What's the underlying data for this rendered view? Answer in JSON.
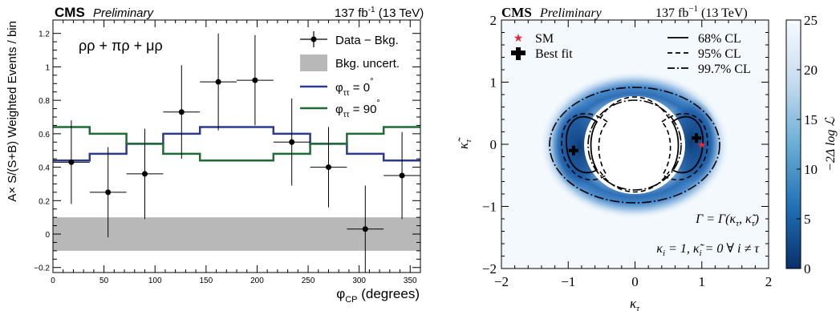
{
  "chart_data": [
    {
      "type": "line",
      "header": {
        "cms": "CMS",
        "preliminary": "Preliminary",
        "lumi": "137 fb",
        "lumi_exp": "-1",
        "energy": " (13 TeV)"
      },
      "channel_label": "ρρ + πρ + μρ",
      "xlabel": "φ",
      "xlabel_sub": "CP",
      "xlabel_unit": " (degrees)",
      "ylabel": "A× S/(S+B) Weighted Events / bin",
      "xlim": [
        0,
        360
      ],
      "ylim": [
        -0.23,
        1.28
      ],
      "xticks": [
        0,
        50,
        100,
        150,
        200,
        250,
        300,
        350
      ],
      "yticks": [
        -0.2,
        0,
        0.2,
        0.4,
        0.6,
        0.8,
        1,
        1.2
      ],
      "ytick_labels": [
        "−0.2",
        "0",
        "0.2",
        "0.4",
        "0.6",
        "0.8",
        "1",
        "1.2"
      ],
      "bin_edges": [
        0,
        36,
        72,
        108,
        144,
        180,
        216,
        252,
        288,
        324,
        360
      ],
      "legend": {
        "data": "Data − Bkg.",
        "uncert": "Bkg. uncert.",
        "phi0_main": "φ",
        "phi0_sub": "ττ",
        "phi0_val": " = 0",
        "phi90_main": "φ",
        "phi90_sub": "ττ",
        "phi90_val": " = 90",
        "deg": "°"
      },
      "data_points": [
        {
          "x": 18,
          "y": 0.43,
          "err": 0.25
        },
        {
          "x": 54,
          "y": 0.25,
          "err": 0.27
        },
        {
          "x": 90,
          "y": 0.36,
          "err": 0.27
        },
        {
          "x": 126,
          "y": 0.73,
          "err": 0.28
        },
        {
          "x": 162,
          "y": 0.91,
          "err": 0.29
        },
        {
          "x": 198,
          "y": 0.92,
          "err": 0.27
        },
        {
          "x": 234,
          "y": 0.55,
          "err": 0.26
        },
        {
          "x": 270,
          "y": 0.4,
          "err": 0.24
        },
        {
          "x": 306,
          "y": 0.03,
          "err": 0.26
        },
        {
          "x": 342,
          "y": 0.35,
          "err": 0.26
        }
      ],
      "bkg_uncert_band": [
        -0.1,
        0.1
      ],
      "series": [
        {
          "name": "φττ = 0°",
          "color": "#2b3a8f",
          "values": [
            0.44,
            0.48,
            0.54,
            0.6,
            0.64,
            0.64,
            0.6,
            0.54,
            0.48,
            0.44
          ]
        },
        {
          "name": "φττ = 90°",
          "color": "#1f6b36",
          "values": [
            0.64,
            0.6,
            0.54,
            0.48,
            0.44,
            0.44,
            0.48,
            0.54,
            0.6,
            0.64
          ]
        }
      ],
      "band_color": "#b8b8b8"
    },
    {
      "type": "heatmap",
      "header": {
        "cms": "CMS",
        "preliminary": "Preliminary",
        "lumi": "137 fb",
        "lumi_exp": "−1",
        "energy": " (13 TeV)"
      },
      "xlabel": "κ",
      "xlabel_sub": "τ",
      "ylabel": "κ̃",
      "ylabel_sub": "τ",
      "xlim": [
        -2,
        2
      ],
      "ylim": [
        -2,
        2
      ],
      "xticks": [
        -2,
        -1,
        0,
        1,
        2
      ],
      "yticks": [
        -2,
        -1,
        0,
        1,
        2
      ],
      "xtick_labels": [
        "−2",
        "−1",
        "0",
        "1",
        "2"
      ],
      "ytick_labels": [
        "−2",
        "−1",
        "0",
        "1",
        "2"
      ],
      "colorbar_label": "−2Δ log ℒ",
      "colorbar_ticks": [
        0,
        5,
        10,
        15,
        20,
        25
      ],
      "colorbar_range": [
        0,
        25
      ],
      "legend_left": {
        "sm": "SM",
        "best_fit": "Best fit"
      },
      "legend_right": [
        "68% CL",
        "95% CL",
        "99.7% CL"
      ],
      "sm_point": [
        1,
        0
      ],
      "best_fit_points": [
        [
          0.92,
          0.1
        ],
        [
          -0.92,
          -0.1
        ]
      ],
      "annotation_gamma": "Γ = Γ(κ",
      "annotation_gamma_tail": ", κ̃",
      "annotation_gamma_end": ")",
      "annotation_kappa": "κ",
      "annotation_kappa_tail": " = 1, κ̃",
      "annotation_kappa_end": " = 0 ∀ i ≠ τ",
      "annotation_sub_i": "i",
      "annotation_sub_tau": "τ",
      "sm_color": "#e8283a"
    }
  ]
}
